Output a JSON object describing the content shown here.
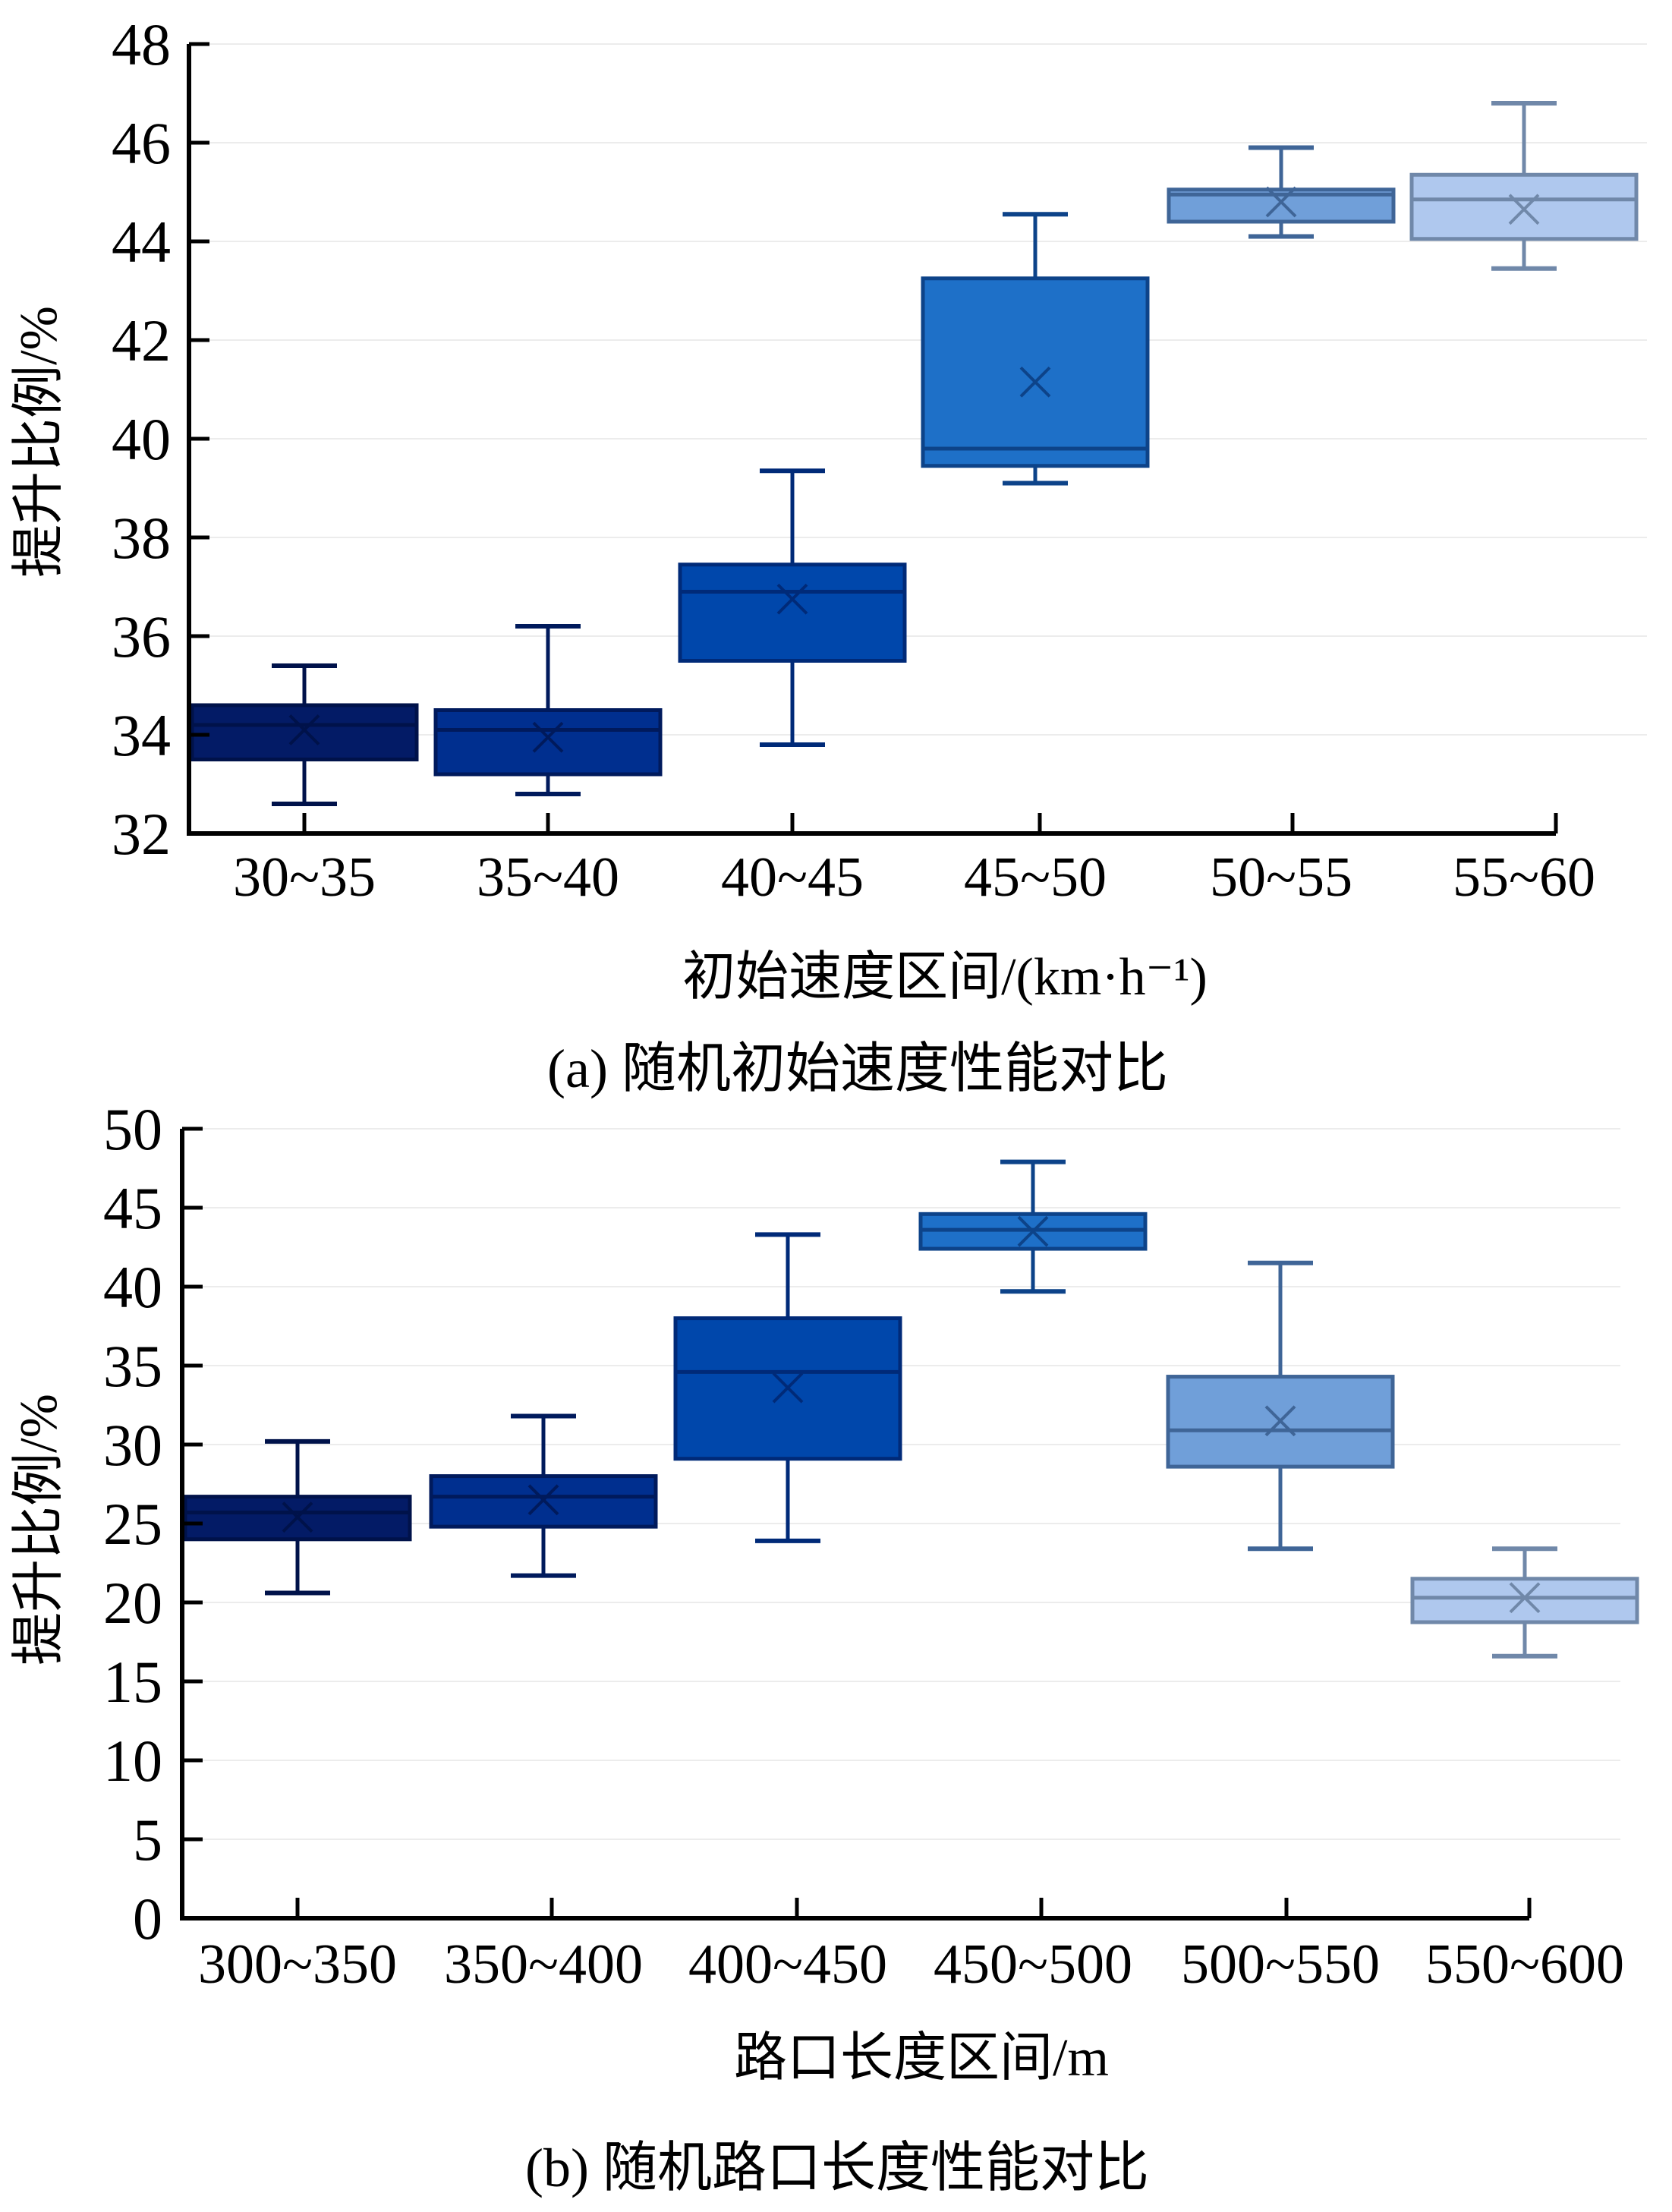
{
  "chart_data": [
    {
      "type": "boxplot",
      "panel": "a",
      "caption": "(a) 随机初始速度性能对比",
      "xlabel": "初始速度区间/(km·h⁻¹)",
      "ylabel": "提升比例/%",
      "ylim": [
        32,
        48
      ],
      "yticks": [
        32,
        34,
        36,
        38,
        40,
        42,
        44,
        46,
        48
      ],
      "grid": true,
      "categories": [
        "30~35",
        "35~40",
        "40~45",
        "45~50",
        "50~55",
        "55~60"
      ],
      "boxes": [
        {
          "category": "30~35",
          "whisker_low": 32.6,
          "q1": 33.5,
          "median": 34.2,
          "q3": 34.6,
          "whisker_high": 35.4,
          "mean": 34.1,
          "fill": "#031b66",
          "stroke": "#00124a"
        },
        {
          "category": "35~40",
          "whisker_low": 32.8,
          "q1": 33.2,
          "median": 34.1,
          "q3": 34.5,
          "whisker_high": 36.2,
          "mean": 33.95,
          "fill": "#002f8f",
          "stroke": "#001a5c"
        },
        {
          "category": "40~45",
          "whisker_low": 33.8,
          "q1": 35.5,
          "median": 36.9,
          "q3": 37.45,
          "whisker_high": 39.35,
          "mean": 36.75,
          "fill": "#0047ab",
          "stroke": "#002a78"
        },
        {
          "category": "45~50",
          "whisker_low": 39.1,
          "q1": 39.45,
          "median": 39.8,
          "q3": 43.25,
          "whisker_high": 44.55,
          "mean": 41.15,
          "fill": "#1e70c8",
          "stroke": "#0d4389"
        },
        {
          "category": "50~55",
          "whisker_low": 44.1,
          "q1": 44.4,
          "median": 44.95,
          "q3": 45.05,
          "whisker_high": 45.9,
          "mean": 44.8,
          "fill": "#709fd9",
          "stroke": "#3f6597"
        },
        {
          "category": "55~60",
          "whisker_low": 43.45,
          "q1": 44.05,
          "median": 44.85,
          "q3": 45.35,
          "whisker_high": 46.8,
          "mean": 44.65,
          "fill": "#afc8ee",
          "stroke": "#7088a9"
        }
      ]
    },
    {
      "type": "boxplot",
      "panel": "b",
      "caption": "(b) 随机路口长度性能对比",
      "xlabel": "路口长度区间/m",
      "ylabel": "提升比例/%",
      "ylim": [
        0,
        50
      ],
      "yticks": [
        0,
        5,
        10,
        15,
        20,
        25,
        30,
        35,
        40,
        45,
        50
      ],
      "grid": true,
      "categories": [
        "300~350",
        "350~400",
        "400~450",
        "450~500",
        "500~550",
        "550~600"
      ],
      "boxes": [
        {
          "category": "300~350",
          "whisker_low": 20.6,
          "q1": 24.0,
          "median": 25.7,
          "q3": 26.7,
          "whisker_high": 30.2,
          "mean": 25.4,
          "fill": "#031b66",
          "stroke": "#00124a"
        },
        {
          "category": "350~400",
          "whisker_low": 21.7,
          "q1": 24.8,
          "median": 26.7,
          "q3": 28.0,
          "whisker_high": 31.8,
          "mean": 26.5,
          "fill": "#002f8f",
          "stroke": "#001a5c"
        },
        {
          "category": "400~450",
          "whisker_low": 23.9,
          "q1": 29.1,
          "median": 34.6,
          "q3": 38.0,
          "whisker_high": 43.3,
          "mean": 33.6,
          "fill": "#0047ab",
          "stroke": "#002a78"
        },
        {
          "category": "450~500",
          "whisker_low": 39.7,
          "q1": 42.4,
          "median": 43.6,
          "q3": 44.6,
          "whisker_high": 47.9,
          "mean": 43.5,
          "fill": "#1e70c8",
          "stroke": "#0d4389"
        },
        {
          "category": "500~550",
          "whisker_low": 23.4,
          "q1": 28.6,
          "median": 30.9,
          "q3": 34.3,
          "whisker_high": 41.5,
          "mean": 31.5,
          "fill": "#709fd9",
          "stroke": "#3f6597"
        },
        {
          "category": "550~600",
          "whisker_low": 16.6,
          "q1": 18.75,
          "median": 20.3,
          "q3": 21.5,
          "whisker_high": 23.4,
          "mean": 20.3,
          "fill": "#afc8ee",
          "stroke": "#7088a9"
        }
      ]
    }
  ]
}
